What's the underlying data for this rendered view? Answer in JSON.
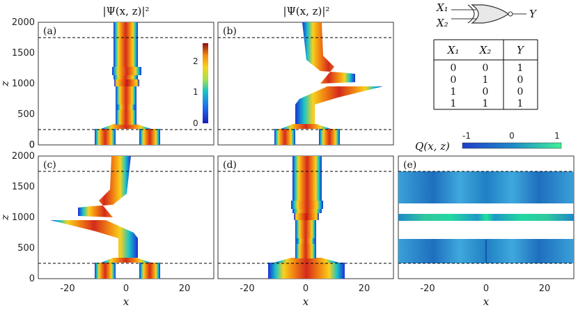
{
  "colors": {
    "beam_core": "#d42a1c",
    "beam_mid": "#f38a12",
    "beam_edge1": "#f6d21e",
    "beam_edge2": "#18c4c8",
    "beam_edge3": "#1a2fd6",
    "q_base": "#1e88c8",
    "q_light": "#4fb2e0",
    "q_green": "#22e39a",
    "dashed": "#000000"
  },
  "column_titles": [
    "|Ψ(x, z)|²",
    "|Ψ(x, z)|²"
  ],
  "panels": [
    "(a)",
    "(b)",
    "(c)",
    "(d)",
    "(e)"
  ],
  "axes": {
    "x_label": "x",
    "z_label": "z",
    "x_ticks": [
      "-20",
      "0",
      "20"
    ],
    "z_ticks": [
      "0",
      "500",
      "1000",
      "1500",
      "2000"
    ]
  },
  "colorbar_psi": {
    "ticks": [
      "0",
      "1",
      "2"
    ]
  },
  "colorbar_q": {
    "label": "Q(x, z)",
    "ticks": [
      "-1",
      "0",
      "1"
    ]
  },
  "gate": {
    "inputs": [
      "X₁",
      "X₂"
    ],
    "output": "Y",
    "type": "XNOR"
  },
  "truth_table": {
    "headers": [
      "X₁",
      "X₂",
      "Y"
    ],
    "rows": [
      [
        "0",
        "0",
        "1"
      ],
      [
        "0",
        "1",
        "0"
      ],
      [
        "1",
        "0",
        "0"
      ],
      [
        "1",
        "1",
        "1"
      ]
    ]
  },
  "chart_data": [
    {
      "type": "heatmap",
      "panel": "(a)",
      "title": "|Ψ(x, z)|²",
      "xlabel": "",
      "ylabel": "z",
      "xlim": [
        -30,
        30
      ],
      "ylim": [
        0,
        2000
      ],
      "dashed_lines_z": [
        250,
        1750
      ],
      "colorbar": {
        "range": [
          0,
          2.6
        ],
        "ticks": [
          0,
          1,
          2
        ]
      },
      "beams": [
        {
          "z": [
            0,
            260
          ],
          "center": -10,
          "width": 7,
          "peak": 1.7
        },
        {
          "z": [
            0,
            260
          ],
          "center": 7,
          "width": 7,
          "peak": 1.7
        },
        {
          "z": [
            260,
            1000
          ],
          "center": 0,
          "width": 7,
          "peak": 1.8
        },
        {
          "z": [
            1000,
            1080
          ],
          "center": 0,
          "width": 8,
          "peak": 2.6
        },
        {
          "z": [
            1080,
            2000
          ],
          "center": 0,
          "width": 8,
          "peak": 1.8
        }
      ]
    },
    {
      "type": "heatmap",
      "panel": "(b)",
      "title": "|Ψ(x, z)|²",
      "xlabel": "",
      "ylabel": "",
      "xlim": [
        -30,
        30
      ],
      "ylim": [
        0,
        2000
      ],
      "dashed_lines_z": [
        250,
        1750
      ],
      "beams": [
        {
          "z": [
            0,
            260
          ],
          "center": -10,
          "width": 7,
          "peak": 1.7
        },
        {
          "z": [
            0,
            260
          ],
          "center": 7,
          "width": 7,
          "peak": 1.7
        },
        {
          "z": [
            260,
            960
          ],
          "center_from": 0,
          "center_to": 25,
          "width": 7,
          "peak": 1.8
        },
        {
          "z": [
            1080,
            2000
          ],
          "center_from": 13,
          "center_to": 0,
          "width": 6,
          "peak": 1.8
        }
      ]
    },
    {
      "type": "heatmap",
      "panel": "(c)",
      "xlabel": "x",
      "ylabel": "z",
      "xlim": [
        -30,
        30
      ],
      "ylim": [
        0,
        2000
      ],
      "dashed_lines_z": [
        250,
        1750
      ],
      "beams": [
        {
          "z": [
            0,
            260
          ],
          "center": -10,
          "width": 7,
          "peak": 1.7
        },
        {
          "z": [
            0,
            260
          ],
          "center": 7,
          "width": 7,
          "peak": 1.7
        },
        {
          "z": [
            260,
            960
          ],
          "center_from": 0,
          "center_to": -25,
          "width": 7,
          "peak": 1.8
        },
        {
          "z": [
            1080,
            2000
          ],
          "center_from": -13,
          "center_to": 0,
          "width": 6,
          "peak": 1.8
        }
      ]
    },
    {
      "type": "heatmap",
      "panel": "(d)",
      "xlabel": "x",
      "ylabel": "",
      "xlim": [
        -30,
        30
      ],
      "ylim": [
        0,
        2000
      ],
      "dashed_lines_z": [
        250,
        1750
      ],
      "beams": [
        {
          "z": [
            0,
            260
          ],
          "center": 0,
          "width": 26,
          "peak": 1.8
        },
        {
          "z": [
            260,
            1000
          ],
          "center": 0,
          "width": 7,
          "peak": 1.8
        },
        {
          "z": [
            1000,
            1080
          ],
          "center": 0,
          "width": 8,
          "peak": 2.6
        },
        {
          "z": [
            1080,
            2000
          ],
          "center": 0,
          "width": 9,
          "peak": 1.8
        }
      ]
    },
    {
      "type": "heatmap",
      "panel": "(e)",
      "xlabel": "x",
      "ylabel": "",
      "xlim": [
        -30,
        30
      ],
      "ylim": [
        0,
        2000
      ],
      "dashed_lines_z": [
        250,
        1750
      ],
      "colorbar": {
        "label": "Q(x, z)",
        "range": [
          -1,
          1
        ],
        "ticks": [
          -1,
          0,
          1
        ]
      },
      "bands": [
        {
          "z": [
            250,
            700
          ],
          "q": -0.3
        },
        {
          "z": [
            950,
            1000
          ],
          "q": 0.4
        },
        {
          "z": [
            1100,
            1750
          ],
          "q": -0.3
        }
      ]
    }
  ]
}
